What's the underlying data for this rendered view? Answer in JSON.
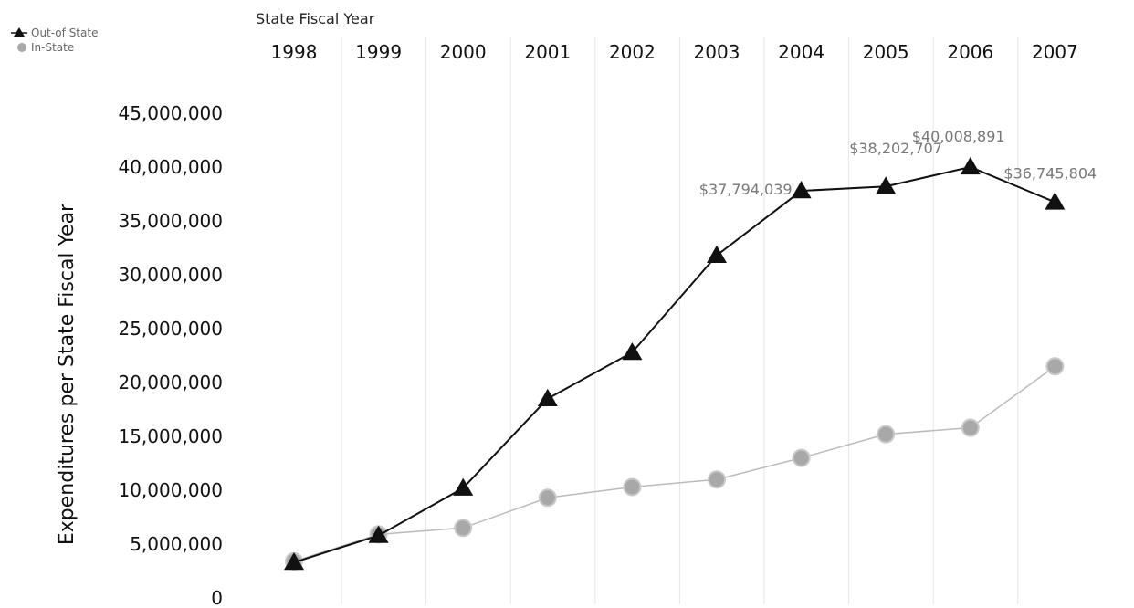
{
  "chart_data": {
    "type": "line",
    "title": "",
    "xlabel": "State Fiscal Year",
    "ylabel": "Expenditures per State Fiscal Year",
    "x": [
      1998,
      1999,
      2000,
      2001,
      2002,
      2003,
      2004,
      2005,
      2006,
      2007
    ],
    "x_tick_labels": [
      "1998",
      "1999",
      "2000",
      "2001",
      "2002",
      "2003",
      "2004",
      "2005",
      "2006",
      "2007"
    ],
    "ylim": [
      0,
      45000000
    ],
    "y_ticks": [
      0,
      5000000,
      10000000,
      15000000,
      20000000,
      25000000,
      30000000,
      35000000,
      40000000,
      45000000
    ],
    "y_tick_labels": [
      "0",
      "5,000,000",
      "10,000,000",
      "15,000,000",
      "20,000,000",
      "25,000,000",
      "30,000,000",
      "35,000,000",
      "40,000,000",
      "45,000,000"
    ],
    "grid": "vertical",
    "x_axis_position": "top",
    "legend_position": "top-left",
    "series": [
      {
        "name": "Out-of State",
        "marker": "triangle",
        "color": "#111111",
        "values": [
          3300000,
          5800000,
          10200000,
          18500000,
          22800000,
          31800000,
          37794039,
          38202707,
          40008891,
          36745804
        ],
        "labels": [
          "",
          "",
          "",
          "",
          "",
          "",
          "$37,794,039",
          "$38,202,707",
          "$40,008,891",
          "$36,745,804"
        ]
      },
      {
        "name": "In-State",
        "marker": "circle",
        "color": "#999999",
        "values": [
          3400000,
          5900000,
          6500000,
          9300000,
          10300000,
          11000000,
          13000000,
          15200000,
          15800000,
          21500000
        ],
        "labels": [
          "",
          "",
          "",
          "",
          "",
          "",
          "",
          "",
          "",
          ""
        ]
      }
    ]
  }
}
